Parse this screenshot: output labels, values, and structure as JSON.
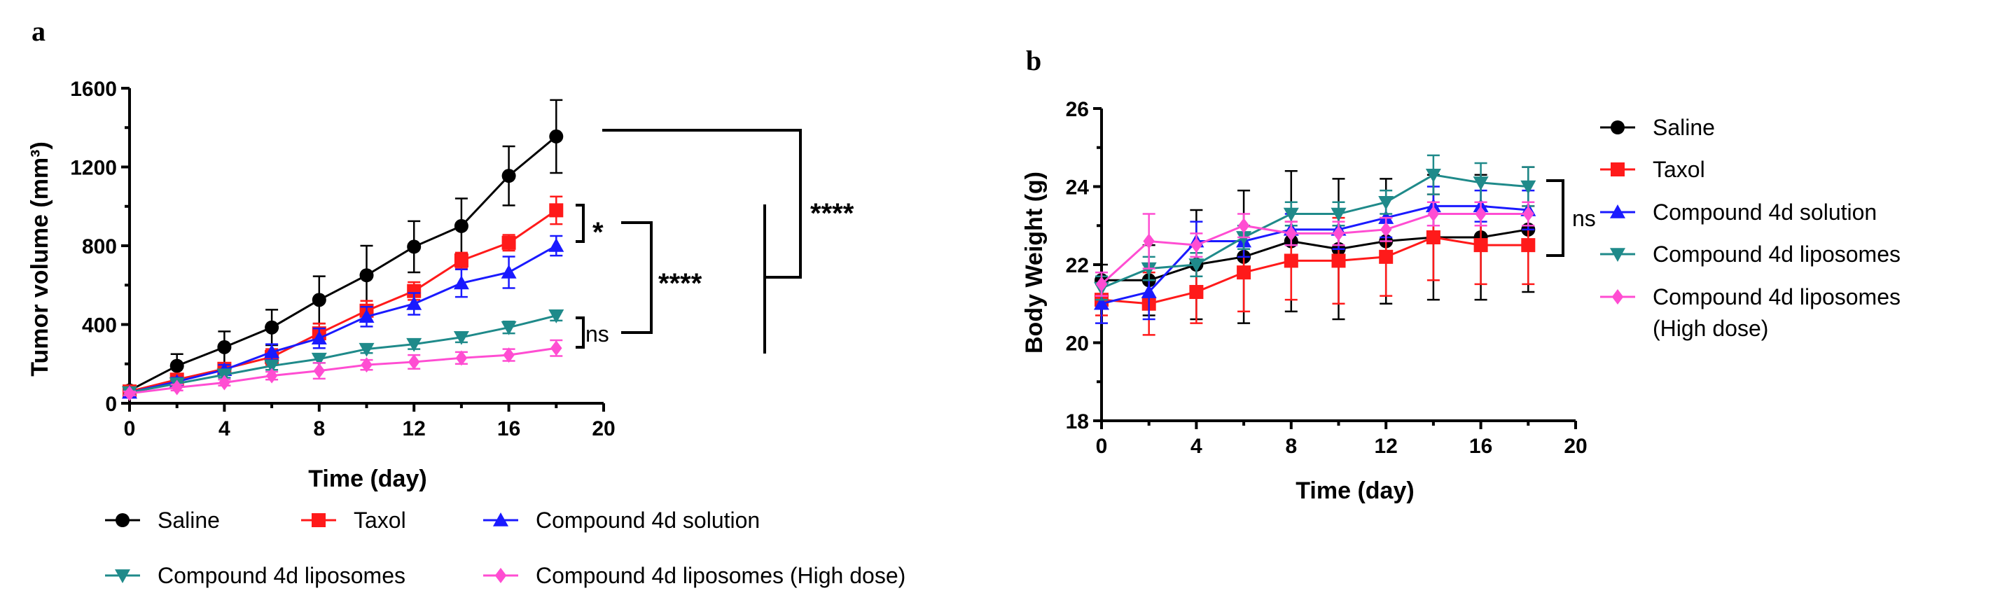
{
  "colors": {
    "Saline": "#000000",
    "Taxol": "#ff1a1a",
    "Compound 4d solution": "#1a1aff",
    "Compound 4d liposomes": "#1f8a8a",
    "Compound 4d liposomes (High dose)": "#ff4dd2"
  },
  "markers": {
    "Saline": "circle",
    "Taxol": "square",
    "Compound 4d solution": "triangle-up",
    "Compound 4d liposomes": "triangle-down",
    "Compound 4d liposomes (High dose)": "diamond"
  },
  "chart_data": [
    {
      "panel": "a",
      "type": "line",
      "xlabel": "Time (day)",
      "ylabel": "Tumor volume (mm³)",
      "xlim": [
        0,
        20
      ],
      "ylim": [
        0,
        1600
      ],
      "xticks": [
        0,
        4,
        8,
        12,
        16,
        20
      ],
      "yticks": [
        0,
        400,
        800,
        1200,
        1600
      ],
      "x": [
        0,
        2,
        4,
        6,
        8,
        10,
        12,
        14,
        16,
        18
      ],
      "series": [
        {
          "name": "Saline",
          "values": [
            65,
            190,
            285,
            385,
            525,
            650,
            795,
            900,
            1155,
            1355
          ],
          "errors": [
            20,
            60,
            80,
            90,
            120,
            150,
            130,
            140,
            150,
            185
          ]
        },
        {
          "name": "Taxol",
          "values": [
            60,
            120,
            175,
            235,
            355,
            470,
            570,
            725,
            815,
            980
          ],
          "errors": [
            15,
            25,
            30,
            40,
            50,
            50,
            45,
            40,
            40,
            70
          ]
        },
        {
          "name": "Compound 4d solution",
          "values": [
            55,
            110,
            170,
            260,
            330,
            440,
            505,
            610,
            665,
            800
          ],
          "errors": [
            15,
            20,
            25,
            40,
            50,
            50,
            55,
            70,
            80,
            50
          ]
        },
        {
          "name": "Compound 4d liposomes",
          "values": [
            55,
            100,
            145,
            190,
            225,
            275,
            300,
            335,
            385,
            445
          ],
          "errors": [
            10,
            15,
            15,
            20,
            20,
            20,
            25,
            25,
            30,
            25
          ]
        },
        {
          "name": "Compound 4d liposomes (High dose)",
          "values": [
            50,
            80,
            105,
            140,
            165,
            195,
            210,
            230,
            245,
            280
          ],
          "errors": [
            10,
            15,
            15,
            20,
            40,
            25,
            35,
            30,
            30,
            40
          ]
        }
      ],
      "annotations": {
        "star1": "*",
        "ns": "ns",
        "star4a": "****",
        "star4b": "****"
      }
    },
    {
      "panel": "b",
      "type": "line",
      "xlabel": "Time (day)",
      "ylabel": "Body Weight (g)",
      "xlim": [
        0,
        20
      ],
      "ylim": [
        18,
        26
      ],
      "xticks": [
        0,
        4,
        8,
        12,
        16,
        20
      ],
      "yticks": [
        18,
        20,
        22,
        24,
        26
      ],
      "x": [
        0,
        2,
        4,
        6,
        8,
        10,
        12,
        14,
        16,
        18
      ],
      "series": [
        {
          "name": "Saline",
          "values": [
            21.6,
            21.6,
            22.0,
            22.2,
            22.6,
            22.4,
            22.6,
            22.7,
            22.7,
            22.9
          ],
          "errors": [
            0.4,
            0.9,
            1.4,
            1.7,
            1.8,
            1.8,
            1.6,
            1.6,
            1.6,
            1.6
          ]
        },
        {
          "name": "Taxol",
          "values": [
            21.1,
            21.0,
            21.3,
            21.8,
            22.1,
            22.1,
            22.2,
            22.7,
            22.5,
            22.5
          ],
          "errors": [
            0.4,
            0.8,
            0.8,
            1.0,
            1.0,
            1.1,
            1.0,
            1.1,
            1.0,
            1.0
          ]
        },
        {
          "name": "Compound 4d solution",
          "values": [
            21.0,
            21.3,
            22.6,
            22.6,
            22.9,
            22.9,
            23.2,
            23.5,
            23.5,
            23.4
          ],
          "errors": [
            0.5,
            0.7,
            0.5,
            0.4,
            0.4,
            0.5,
            0.5,
            0.5,
            0.4,
            0.5
          ]
        },
        {
          "name": "Compound 4d liposomes",
          "values": [
            21.4,
            21.9,
            22.0,
            22.7,
            23.3,
            23.3,
            23.6,
            24.3,
            24.1,
            24.0
          ],
          "errors": [
            0.3,
            0.3,
            0.3,
            0.3,
            0.3,
            0.3,
            0.3,
            0.5,
            0.5,
            0.5
          ]
        },
        {
          "name": "Compound 4d liposomes (High dose)",
          "values": [
            21.5,
            22.6,
            22.5,
            23.0,
            22.8,
            22.8,
            22.9,
            23.3,
            23.3,
            23.3
          ],
          "errors": [
            0.3,
            0.7,
            0.3,
            0.3,
            0.3,
            0.3,
            0.3,
            0.3,
            0.3,
            0.3
          ]
        }
      ],
      "annotations": {
        "ns": "ns"
      }
    }
  ],
  "legend_a": [
    "Saline",
    "Taxol",
    "Compound 4d solution",
    "Compound 4d liposomes",
    "Compound 4d liposomes (High dose)"
  ],
  "legend_b": {
    "items": [
      "Saline",
      "Taxol",
      "Compound 4d solution",
      "Compound 4d liposomes",
      "Compound 4d liposomes"
    ],
    "last_item_second_line": "(High dose)"
  }
}
